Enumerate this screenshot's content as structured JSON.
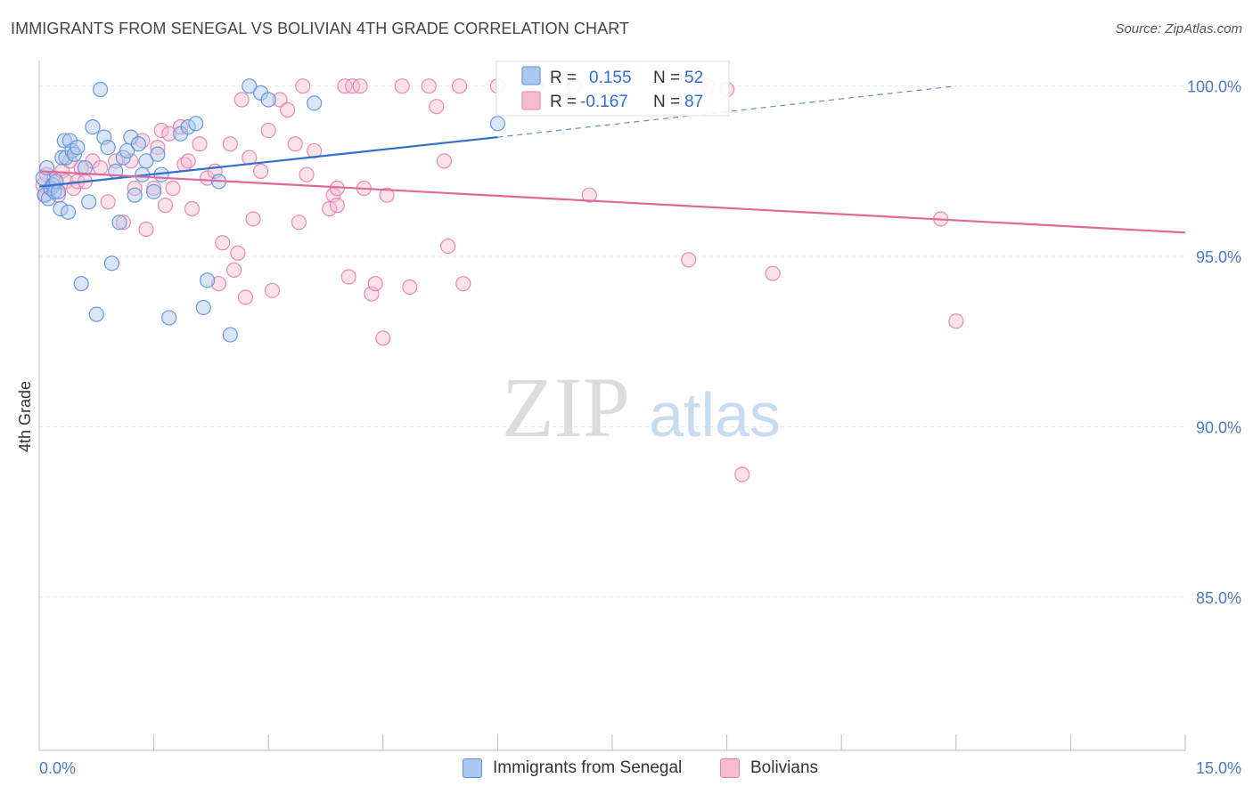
{
  "header": {
    "title": "IMMIGRANTS FROM SENEGAL VS BOLIVIAN 4TH GRADE CORRELATION CHART",
    "source": "Source: ZipAtlas.com"
  },
  "watermark": {
    "zip": "ZIP",
    "atlas": "atlas"
  },
  "colors": {
    "blue": "#5b8fd9",
    "blue_fill": "#aac8f0",
    "blue_line": "#2f6fce",
    "pink": "#e87ea8",
    "pink_fill": "#f6bcd0",
    "pink_line": "#e0689a",
    "axis_text": "#4a79c4",
    "grid": "#e6e6e6"
  },
  "stats": {
    "senegal": {
      "r_label": "R =",
      "r_value": "0.155",
      "n_label": "N =",
      "n_value": "52"
    },
    "bolivians": {
      "r_label": "R =",
      "r_value": "-0.167",
      "n_label": "N =",
      "n_value": "87"
    }
  },
  "legend": {
    "senegal": "Immigrants from Senegal",
    "bolivians": "Bolivians"
  },
  "chart_data": {
    "type": "scatter",
    "title": "IMMIGRANTS FROM SENEGAL VS BOLIVIAN 4TH GRADE CORRELATION CHART",
    "ylabel": "4th Grade",
    "xlabel": "",
    "xlim": [
      0,
      15
    ],
    "ylim": [
      80.5,
      100.75
    ],
    "x_tick_labels": [
      "0.0%",
      "15.0%"
    ],
    "y_ticks": [
      100,
      95,
      90,
      85
    ],
    "y_tick_labels": [
      "100.0%",
      "95.0%",
      "90.0%",
      "85.0%"
    ],
    "grid": true,
    "legend_position": "bottom-center",
    "series": [
      {
        "name": "Immigrants from Senegal",
        "trend": {
          "x": [
            0,
            6.0
          ],
          "y": [
            97.05,
            98.5
          ],
          "dashed_to": [
            12.0,
            100.0
          ]
        },
        "points": [
          [
            0.05,
            97.3
          ],
          [
            0.07,
            96.8
          ],
          [
            0.1,
            97.6
          ],
          [
            0.12,
            96.7
          ],
          [
            0.15,
            97.0
          ],
          [
            0.18,
            97.1
          ],
          [
            0.2,
            96.9
          ],
          [
            0.22,
            97.2
          ],
          [
            0.25,
            96.9
          ],
          [
            0.28,
            96.4
          ],
          [
            0.3,
            97.9
          ],
          [
            0.33,
            98.4
          ],
          [
            0.35,
            97.9
          ],
          [
            0.38,
            96.3
          ],
          [
            0.4,
            98.4
          ],
          [
            0.43,
            98.1
          ],
          [
            0.46,
            98.0
          ],
          [
            0.5,
            98.2
          ],
          [
            0.55,
            94.2
          ],
          [
            0.6,
            97.6
          ],
          [
            0.65,
            96.6
          ],
          [
            0.7,
            98.8
          ],
          [
            0.75,
            93.3
          ],
          [
            0.8,
            99.9
          ],
          [
            0.85,
            98.5
          ],
          [
            0.9,
            98.2
          ],
          [
            0.95,
            94.8
          ],
          [
            1.0,
            97.5
          ],
          [
            1.05,
            96.0
          ],
          [
            1.1,
            97.9
          ],
          [
            1.15,
            98.1
          ],
          [
            1.2,
            98.5
          ],
          [
            1.25,
            96.8
          ],
          [
            1.3,
            98.3
          ],
          [
            1.35,
            97.4
          ],
          [
            1.4,
            97.8
          ],
          [
            1.5,
            96.9
          ],
          [
            1.55,
            98.0
          ],
          [
            1.6,
            97.4
          ],
          [
            1.7,
            93.2
          ],
          [
            1.85,
            98.6
          ],
          [
            1.95,
            98.8
          ],
          [
            2.05,
            98.9
          ],
          [
            2.15,
            93.5
          ],
          [
            2.2,
            94.3
          ],
          [
            2.35,
            97.2
          ],
          [
            2.5,
            92.7
          ],
          [
            2.75,
            100.0
          ],
          [
            2.9,
            99.8
          ],
          [
            3.0,
            99.6
          ],
          [
            3.6,
            99.5
          ],
          [
            6.0,
            98.9
          ]
        ]
      },
      {
        "name": "Bolivians",
        "trend": {
          "x": [
            0,
            15.0
          ],
          "y": [
            97.5,
            95.7
          ]
        },
        "points": [
          [
            0.05,
            97.1
          ],
          [
            0.08,
            96.8
          ],
          [
            0.1,
            97.4
          ],
          [
            0.15,
            97.0
          ],
          [
            0.2,
            97.3
          ],
          [
            0.25,
            96.8
          ],
          [
            0.3,
            97.5
          ],
          [
            0.35,
            97.2
          ],
          [
            0.4,
            97.8
          ],
          [
            0.45,
            97.0
          ],
          [
            0.5,
            97.2
          ],
          [
            0.55,
            97.6
          ],
          [
            0.6,
            97.2
          ],
          [
            0.7,
            97.8
          ],
          [
            0.8,
            97.6
          ],
          [
            0.9,
            96.6
          ],
          [
            1.0,
            97.8
          ],
          [
            1.1,
            96.0
          ],
          [
            1.2,
            97.8
          ],
          [
            1.25,
            97.0
          ],
          [
            1.35,
            98.4
          ],
          [
            1.4,
            95.8
          ],
          [
            1.5,
            97.0
          ],
          [
            1.55,
            98.2
          ],
          [
            1.6,
            98.7
          ],
          [
            1.65,
            96.5
          ],
          [
            1.75,
            97.0
          ],
          [
            1.85,
            98.8
          ],
          [
            1.9,
            97.7
          ],
          [
            1.95,
            97.8
          ],
          [
            2.0,
            96.4
          ],
          [
            2.1,
            98.3
          ],
          [
            2.2,
            97.3
          ],
          [
            2.3,
            97.5
          ],
          [
            2.35,
            94.2
          ],
          [
            2.4,
            95.4
          ],
          [
            2.5,
            98.3
          ],
          [
            2.55,
            94.6
          ],
          [
            2.6,
            95.1
          ],
          [
            2.65,
            99.6
          ],
          [
            2.7,
            93.8
          ],
          [
            2.75,
            97.9
          ],
          [
            2.8,
            96.1
          ],
          [
            2.9,
            97.5
          ],
          [
            3.0,
            98.7
          ],
          [
            3.05,
            94.0
          ],
          [
            3.15,
            99.6
          ],
          [
            3.25,
            99.3
          ],
          [
            3.35,
            98.3
          ],
          [
            3.4,
            96.0
          ],
          [
            3.45,
            100.0
          ],
          [
            3.5,
            97.4
          ],
          [
            3.6,
            98.1
          ],
          [
            3.8,
            96.4
          ],
          [
            3.85,
            96.8
          ],
          [
            3.9,
            97.0
          ],
          [
            4.0,
            100.0
          ],
          [
            4.05,
            94.4
          ],
          [
            4.1,
            100.0
          ],
          [
            4.2,
            100.0
          ],
          [
            4.25,
            97.0
          ],
          [
            4.35,
            93.9
          ],
          [
            4.4,
            94.2
          ],
          [
            4.5,
            92.6
          ],
          [
            4.55,
            96.8
          ],
          [
            4.75,
            100.0
          ],
          [
            4.85,
            94.1
          ],
          [
            5.1,
            100.0
          ],
          [
            5.2,
            99.4
          ],
          [
            5.3,
            97.8
          ],
          [
            5.35,
            95.3
          ],
          [
            5.5,
            100.0
          ],
          [
            5.55,
            94.2
          ],
          [
            6.0,
            100.0
          ],
          [
            6.5,
            100.0
          ],
          [
            7.0,
            100.0
          ],
          [
            7.2,
            96.8
          ],
          [
            8.5,
            94.9
          ],
          [
            8.65,
            100.0
          ],
          [
            8.75,
            100.0
          ],
          [
            9.0,
            99.9
          ],
          [
            9.2,
            88.6
          ],
          [
            9.6,
            94.5
          ],
          [
            11.8,
            96.1
          ],
          [
            12.0,
            93.1
          ],
          [
            1.7,
            98.6
          ],
          [
            3.9,
            96.5
          ]
        ]
      }
    ]
  }
}
